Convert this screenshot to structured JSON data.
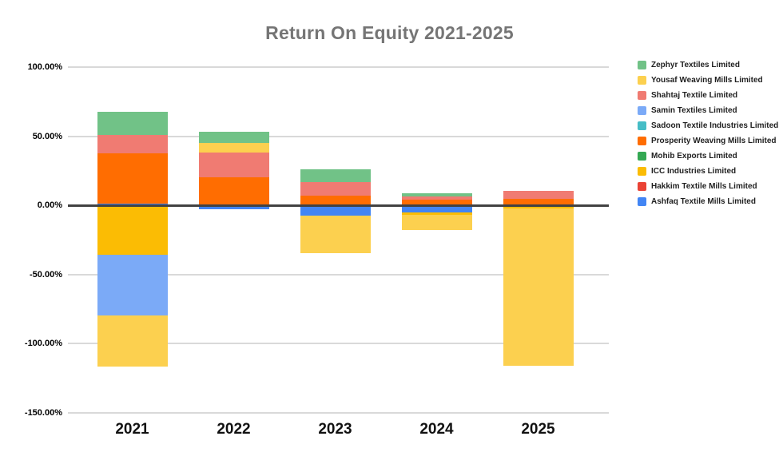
{
  "chart_data": {
    "type": "bar",
    "stacked": true,
    "title": "Return On Equity 2021-2025",
    "xlabel": "",
    "ylabel": "",
    "categories": [
      "2021",
      "2022",
      "2023",
      "2024",
      "2025"
    ],
    "series": [
      {
        "name": "Ashfaq Textile Mills Limited",
        "color": "#4285f4",
        "values": [
          1.3,
          -3.0,
          -7.6,
          -5.3,
          0
        ]
      },
      {
        "name": "Hakkim Textile Mills Limited",
        "color": "#ea4335",
        "values": [
          0,
          0,
          0,
          0,
          0
        ]
      },
      {
        "name": "ICC Industries Limited",
        "color": "#fbbc04",
        "values": [
          -35.8,
          0,
          0,
          -1.7,
          -2.0
        ]
      },
      {
        "name": "Mohib Exports Limited",
        "color": "#34a853",
        "values": [
          0,
          0,
          0,
          0,
          0
        ]
      },
      {
        "name": "Prosperity Weaving Mills Limited",
        "color": "#ff6d01",
        "values": [
          36.4,
          20.5,
          6.9,
          4.3,
          4.7
        ]
      },
      {
        "name": "Sadoon Textile Industries Limited",
        "color": "#46bdc6",
        "values": [
          0,
          0,
          0,
          0,
          0
        ]
      },
      {
        "name": "Samin Textiles Limited",
        "color": "#7baaf7",
        "values": [
          -44.0,
          0,
          0,
          0,
          0
        ]
      },
      {
        "name": "Shahtaj Textile Limited",
        "color": "#f07b72",
        "values": [
          13.5,
          17.5,
          10.0,
          2.0,
          5.8
        ]
      },
      {
        "name": "Yousaf Weaving Mills Limited",
        "color": "#fcd04f",
        "values": [
          -36.8,
          6.9,
          -27.0,
          -10.6,
          -113.9
        ]
      },
      {
        "name": "Zephyr Textiles Limited",
        "color": "#71c287",
        "values": [
          16.6,
          8.4,
          9.2,
          2.6,
          0
        ]
      }
    ],
    "legend_position": "right",
    "legend_order": "reverse-of-series",
    "grid": true,
    "ylim": [
      -150,
      100
    ],
    "y_ticks": [
      {
        "value": 100,
        "label": "100.00%"
      },
      {
        "value": 50,
        "label": "50.00%"
      },
      {
        "value": 0,
        "label": "0.00%"
      },
      {
        "value": -50,
        "label": "-50.00%"
      },
      {
        "value": -100,
        "label": "-100.00%"
      },
      {
        "value": -150,
        "label": "-150.00%"
      }
    ],
    "colors": {
      "title_text": "#757575",
      "axis_text": "#000000",
      "gridline": "#d9d9d9",
      "zero_line": "#424242",
      "background": "#ffffff"
    }
  }
}
